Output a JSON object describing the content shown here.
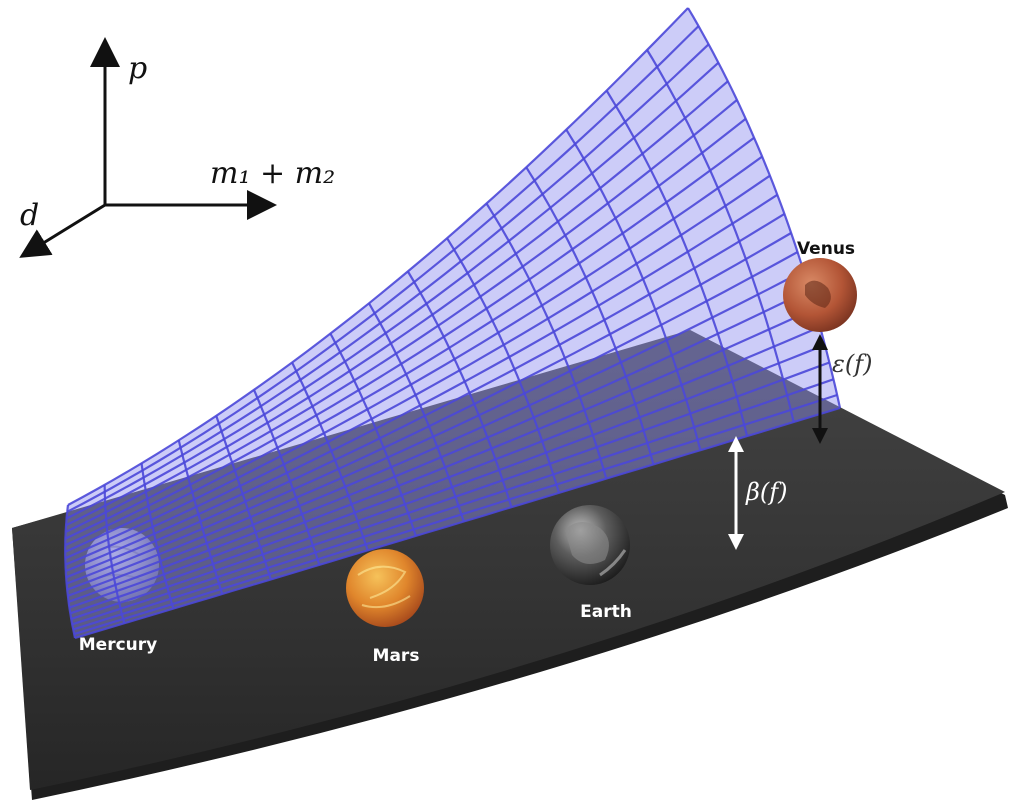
{
  "axes": {
    "vertical": "p",
    "horizontal": "m₁ + m₂",
    "depth": "d"
  },
  "planets": {
    "venus": "Venus",
    "mercury": "Mercury",
    "mars": "Mars",
    "earth": "Earth"
  },
  "distances": {
    "epsilon": "ε(f)",
    "beta": "β(f)"
  },
  "colors": {
    "plane": "#2e2e2e",
    "surface_fill": "#8f8ff0",
    "surface_grid": "#4b48d8",
    "venus": "#b85a3a",
    "mars": "#e0892e",
    "earth": "#3c3c3c",
    "mercury": "#9a9ab8"
  }
}
